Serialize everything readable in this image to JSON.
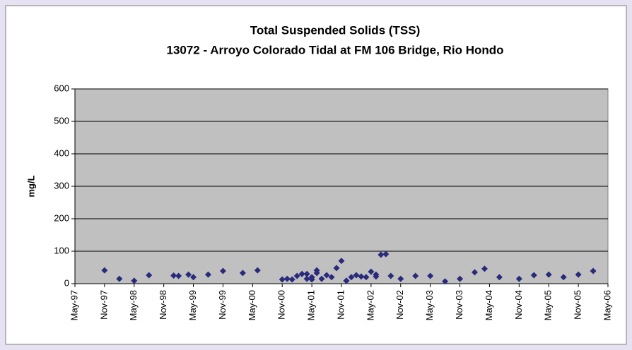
{
  "chart_data": {
    "type": "scatter",
    "title": "Total Suspended Solids (TSS)",
    "subtitle": "13072 - Arroyo Colorado Tidal at FM 106 Bridge, Rio Hondo",
    "y_label": "mg/L",
    "color": "#2a2a7c",
    "background": "#c0c0c0",
    "grid": true,
    "xlim": [
      "1997-05",
      "2006-05"
    ],
    "xticks": [
      {
        "value": "1997-05",
        "label": "May-97"
      },
      {
        "value": "1997-11",
        "label": "Nov-97"
      },
      {
        "value": "1998-05",
        "label": "May-98"
      },
      {
        "value": "1998-11",
        "label": "Nov-98"
      },
      {
        "value": "1999-05",
        "label": "May-99"
      },
      {
        "value": "1999-11",
        "label": "Nov-99"
      },
      {
        "value": "2000-05",
        "label": "May-00"
      },
      {
        "value": "2000-11",
        "label": "Nov-00"
      },
      {
        "value": "2001-05",
        "label": "May-01"
      },
      {
        "value": "2001-11",
        "label": "Nov-01"
      },
      {
        "value": "2002-05",
        "label": "May-02"
      },
      {
        "value": "2002-11",
        "label": "Nov-02"
      },
      {
        "value": "2003-05",
        "label": "May-03"
      },
      {
        "value": "2003-11",
        "label": "Nov-03"
      },
      {
        "value": "2004-05",
        "label": "May-04"
      },
      {
        "value": "2004-11",
        "label": "Nov-04"
      },
      {
        "value": "2005-05",
        "label": "May-05"
      },
      {
        "value": "2005-11",
        "label": "Nov-05"
      },
      {
        "value": "2006-05",
        "label": "May-06"
      }
    ],
    "ylim": [
      0,
      600
    ],
    "yticks": [
      0,
      100,
      200,
      300,
      400,
      500,
      600
    ],
    "x": [
      "1997-11",
      "1998-02",
      "1998-05",
      "1998-08",
      "1999-01",
      "1999-02",
      "1999-04",
      "1999-05",
      "1999-08",
      "1999-11",
      "2000-03",
      "2000-06",
      "2000-11",
      "2000-12",
      "2001-01",
      "2001-02",
      "2001-03",
      "2001-04",
      "2001-04",
      "2001-05",
      "2001-05",
      "2001-06",
      "2001-06",
      "2001-07",
      "2001-08",
      "2001-09",
      "2001-10",
      "2001-11",
      "2001-12",
      "2001-12",
      "2002-01",
      "2002-02",
      "2002-03",
      "2002-04",
      "2002-05",
      "2002-06",
      "2002-06",
      "2002-07",
      "2002-08",
      "2002-09",
      "2002-11",
      "2003-02",
      "2003-05",
      "2003-08",
      "2003-11",
      "2004-02",
      "2004-04",
      "2004-07",
      "2004-11",
      "2005-02",
      "2005-05",
      "2005-08",
      "2005-11",
      "2006-02"
    ],
    "values": [
      41,
      15,
      9,
      26,
      25,
      24,
      28,
      20,
      28,
      39,
      33,
      41,
      13,
      15,
      13,
      24,
      30,
      30,
      15,
      20,
      13,
      33,
      41,
      15,
      26,
      20,
      48,
      70,
      9,
      9,
      20,
      26,
      22,
      20,
      37,
      28,
      22,
      89,
      91,
      24,
      15,
      24,
      24,
      7,
      15,
      35,
      46,
      20,
      15,
      26,
      28,
      20,
      28,
      39
    ]
  }
}
